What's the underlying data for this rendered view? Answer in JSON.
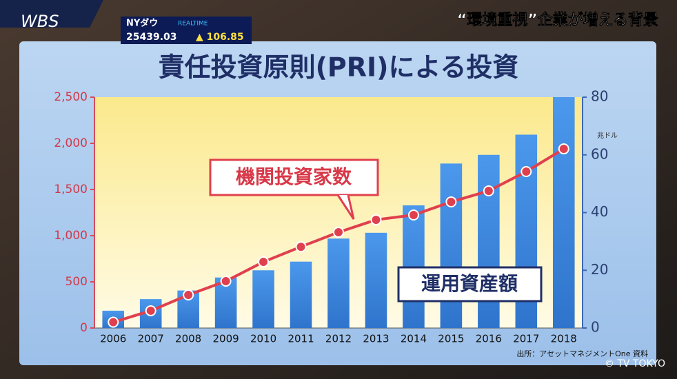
{
  "broadcast": {
    "logo": "WBS",
    "ticker_name": "NYダウ",
    "ticker_tag": "REALTIME",
    "ticker_value": "25439.03",
    "ticker_change": "▲ 106.85",
    "headline": "“環境重視”企業が増える背景",
    "copyright": "© TV TOKYO"
  },
  "chart_data": {
    "type": "bar-line",
    "title": "責任投資原則(PRI)による投資",
    "categories": [
      "2006",
      "2007",
      "2008",
      "2009",
      "2010",
      "2011",
      "2012",
      "2013",
      "2014",
      "2015",
      "2016",
      "2017",
      "2018"
    ],
    "series": [
      {
        "name": "運用資産額",
        "type": "bar",
        "axis": "y2",
        "color": "#3f8fe3",
        "values": [
          6,
          10,
          13,
          17.5,
          20,
          23,
          31,
          33,
          42.5,
          57,
          60,
          67,
          80
        ]
      },
      {
        "name": "機関投資家数",
        "type": "line",
        "axis": "y",
        "color": "#e0404e",
        "values": [
          63,
          187,
          358,
          507,
          716,
          880,
          1037,
          1172,
          1224,
          1366,
          1485,
          1694,
          1940
        ]
      }
    ],
    "ylim": [
      0,
      2500
    ],
    "yticks": [
      0,
      500,
      {
        "value": 1000,
        "label": "1,000"
      },
      {
        "value": 1500,
        "label": "1,500"
      },
      {
        "value": 2000,
        "label": "2,000"
      },
      {
        "value": 2500,
        "label": "2,500"
      }
    ],
    "y2lim": [
      0,
      80
    ],
    "y2ticks": [
      0,
      20,
      40,
      60,
      80
    ],
    "y2unit": "兆ドル",
    "source": "出所：アセットマネジメントOne 資料"
  }
}
